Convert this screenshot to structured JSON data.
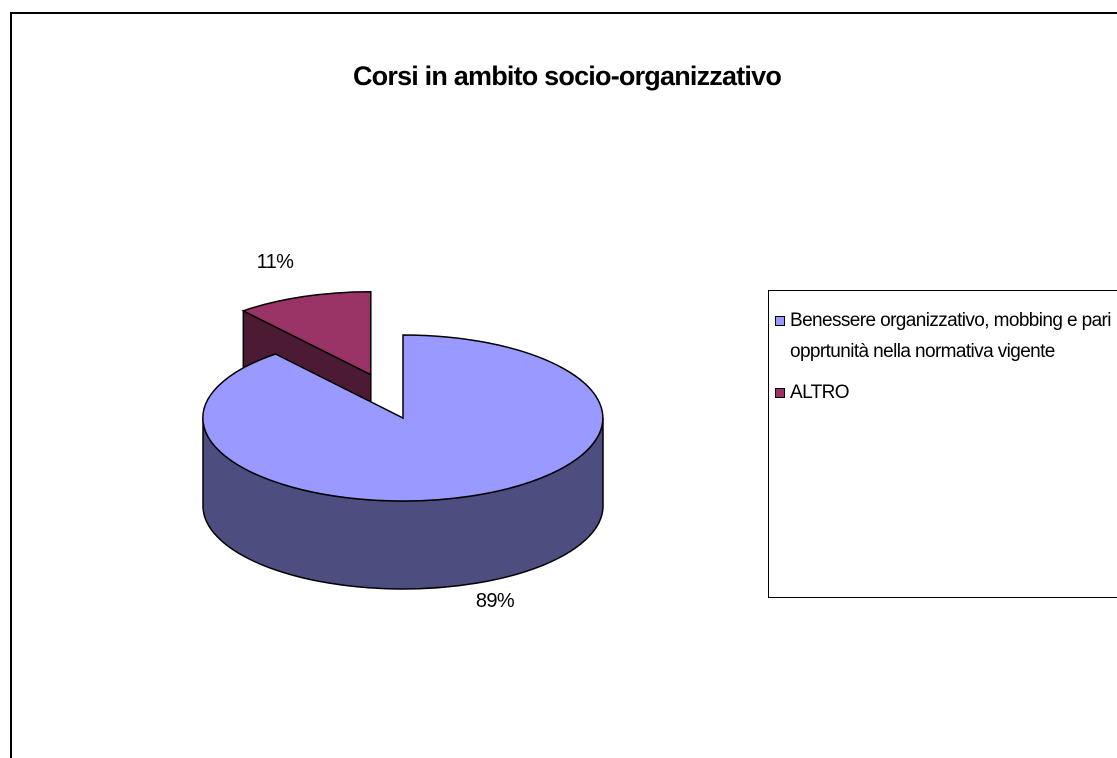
{
  "chart_data": {
    "type": "pie",
    "title": "Corsi in ambito socio-organizzativo",
    "categories": [
      "Benessere organizzativo, mobbing e pari opprtunità nella normativa vigente",
      "ALTRO"
    ],
    "values": [
      89,
      11
    ],
    "value_labels": [
      "89%",
      "11%"
    ],
    "colors": [
      "#9999ff",
      "#993366"
    ]
  }
}
